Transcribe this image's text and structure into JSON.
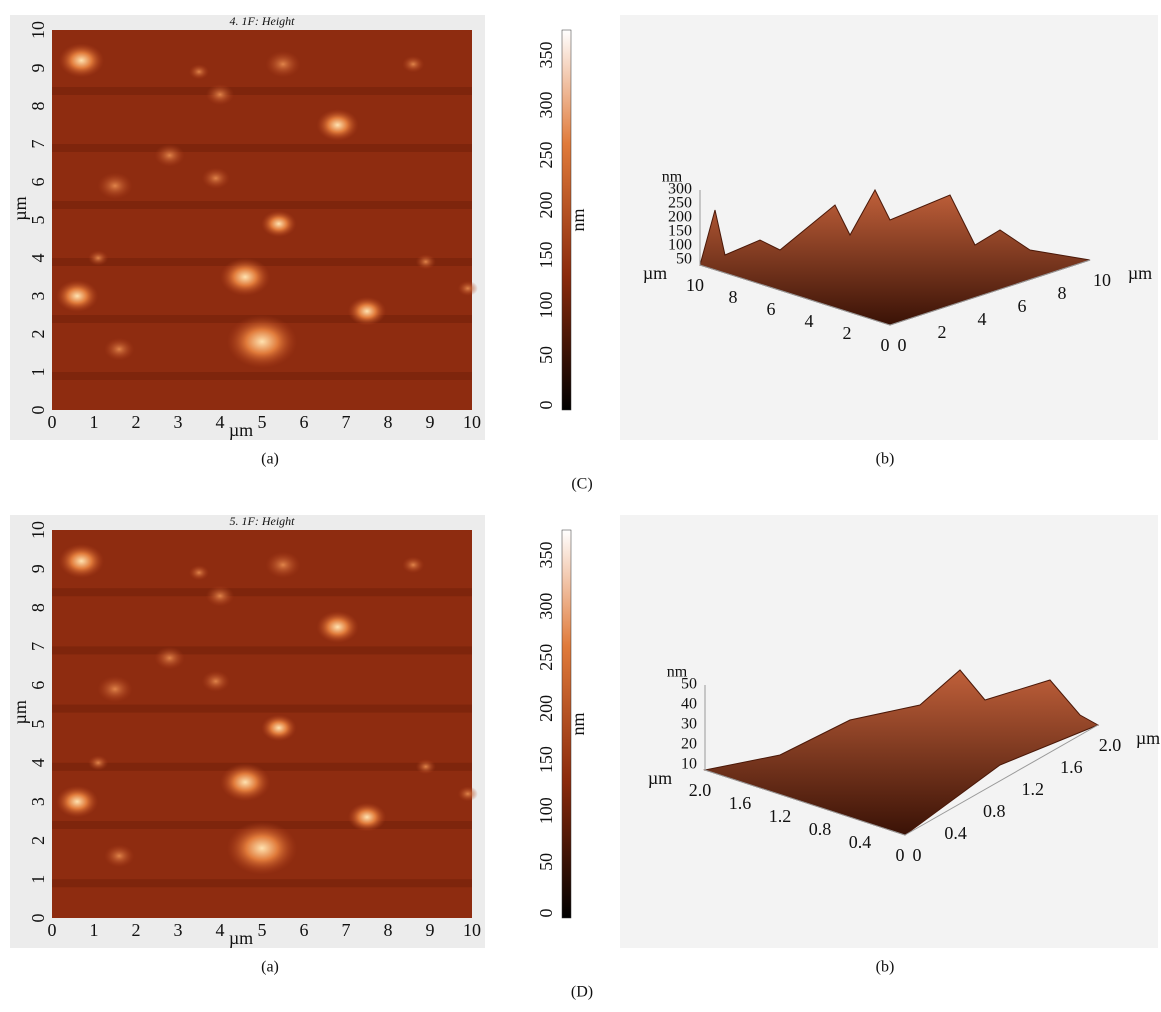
{
  "figures": [
    {
      "label": "(C)",
      "image": {
        "title": "4. 1F: Height",
        "x_label": "µm",
        "y_label": "µm",
        "xticks": [
          "0",
          "1",
          "2",
          "3",
          "4",
          "5",
          "6",
          "7",
          "8",
          "9",
          "10"
        ],
        "yticks": [
          "0",
          "1",
          "2",
          "3",
          "4",
          "5",
          "6",
          "7",
          "8",
          "9",
          "10"
        ],
        "colorbar_label": "nm",
        "colorbar_ticks": [
          "0",
          "50",
          "100",
          "150",
          "200",
          "250",
          "300",
          "350"
        ],
        "caption": "(a)"
      },
      "surface": {
        "z_label": "nm",
        "zticks": [
          "50",
          "100",
          "150",
          "200",
          "250",
          "300"
        ],
        "left_label": "µm",
        "left_ticks": [
          "10",
          "8",
          "6",
          "4",
          "2",
          "0"
        ],
        "right_label": "µm",
        "right_ticks": [
          "0",
          "2",
          "4",
          "6",
          "8",
          "10"
        ],
        "caption": "(b)"
      }
    },
    {
      "label": "(D)",
      "image": {
        "title": "5. 1F: Height",
        "x_label": "µm",
        "y_label": "µm",
        "xticks": [
          "0",
          "1",
          "2",
          "3",
          "4",
          "5",
          "6",
          "7",
          "8",
          "9",
          "10"
        ],
        "yticks": [
          "0",
          "1",
          "2",
          "3",
          "4",
          "5",
          "6",
          "7",
          "8",
          "9",
          "10"
        ],
        "colorbar_label": "nm",
        "colorbar_ticks": [
          "0",
          "50",
          "100",
          "150",
          "200",
          "250",
          "300",
          "350"
        ],
        "caption": "(a)"
      },
      "surface": {
        "z_label": "nm",
        "zticks": [
          "10",
          "20",
          "30",
          "40",
          "50"
        ],
        "left_label": "µm",
        "left_ticks": [
          "2.0",
          "1.6",
          "1.2",
          "0.8",
          "0.4",
          "0"
        ],
        "right_label": "µm",
        "right_ticks": [
          "0",
          "0.4",
          "0.8",
          "1.2",
          "1.6",
          "2.0"
        ],
        "caption": "(b)"
      }
    }
  ]
}
